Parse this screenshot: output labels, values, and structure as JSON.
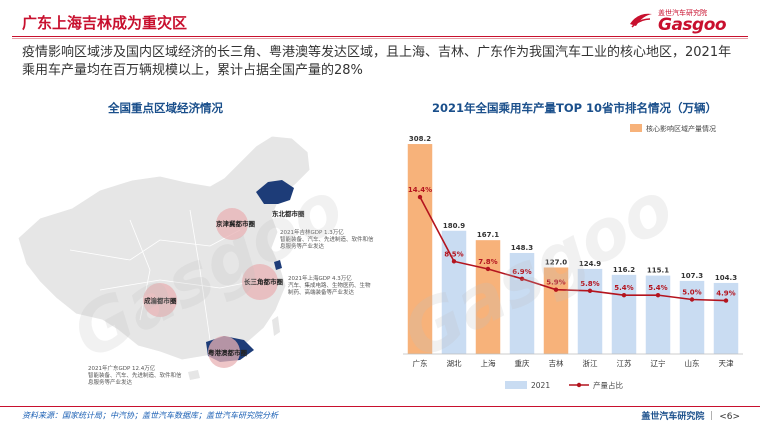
{
  "header": {
    "title": "广东上海吉林成为重灾区",
    "logo_sub": "盖世汽车研究院",
    "logo_brand": "Gasgoo"
  },
  "intro": "疫情影响区域涉及国内区域经济的长三角、粤港澳等发达区域，且上海、吉林、广东作为我国汽车工业的核心地区，2021年乘用车产量均在百万辆规模以上，累计占据全国产量的28%",
  "map_section": {
    "title": "全国重点区域经济情况",
    "regions": [
      {
        "label": "京津冀都市圈"
      },
      {
        "label": "东北都市圈"
      },
      {
        "label": "长三角都市圈"
      },
      {
        "label": "成渝都市圈"
      },
      {
        "label": "粤港澳都市圈"
      }
    ],
    "notes": {
      "jilin": [
        "2021年吉林GDP 1.3万亿",
        "智能装备、汽车、先进制造、软件和信",
        "息服务等产业发达"
      ],
      "shanghai": [
        "2021年上海GDP 4.3万亿",
        "汽车、集成电路、生物医药、生物",
        "制药、高端装备等产业发达"
      ],
      "guangdong": [
        "2021年广东GDP 12.4万亿",
        "智能装备、汽车、先进制造、软件和信",
        "息服务等产业发达"
      ]
    }
  },
  "chart_section": {
    "title": "2021年全国乘用车产量TOP 10省市排名情况（万辆）"
  },
  "chart_data": {
    "type": "bar",
    "title": "2021年全国乘用车产量TOP 10省市排名情况（万辆）",
    "categories": [
      "广东",
      "湖北",
      "上海",
      "重庆",
      "吉林",
      "浙江",
      "江苏",
      "辽宁",
      "山东",
      "天津"
    ],
    "series": [
      {
        "name": "2021",
        "kind": "bar",
        "values": [
          308.2,
          180.9,
          167.1,
          148.3,
          127.0,
          124.9,
          116.2,
          115.1,
          107.3,
          104.3
        ]
      },
      {
        "name": "产量占比",
        "kind": "line",
        "values": [
          14.4,
          8.5,
          7.8,
          6.9,
          5.9,
          5.8,
          5.4,
          5.4,
          5.0,
          4.9
        ],
        "unit": "%"
      }
    ],
    "highlight": {
      "name": "核心影响区域产量情况",
      "categories": [
        "广东",
        "上海",
        "吉林"
      ]
    },
    "ylim": [
      0,
      320
    ],
    "y2lim": [
      0,
      20
    ],
    "legend_position": "bottom",
    "highlight_legend_position": "top-right",
    "colors": {
      "bar": "#c9dcf2",
      "highlight": "#f7b27a",
      "line": "#b4141e",
      "label": "#b4141e"
    }
  },
  "footer": {
    "source": "资料来源：国家统计局；中汽协；盖世汽车数据库；盖世汽车研究院分析",
    "org": "盖世汽车研究院",
    "page": "<6>"
  }
}
